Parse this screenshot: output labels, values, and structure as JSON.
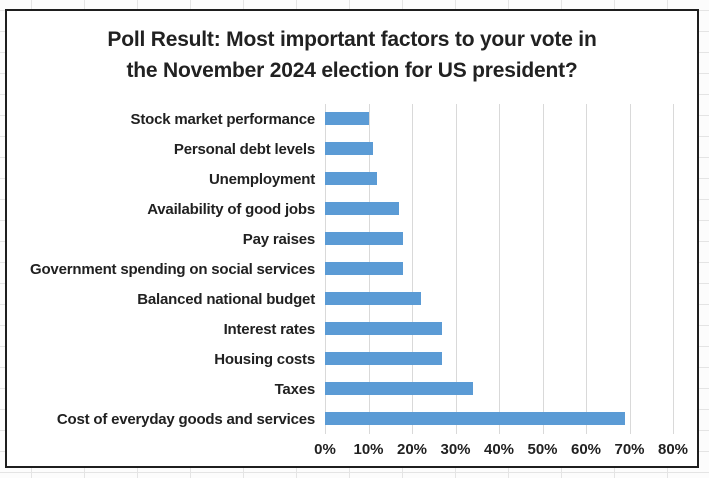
{
  "chart_data": {
    "type": "bar",
    "orientation": "horizontal",
    "title": "Poll Result: Most important factors to your vote in the November 2024 election for US president?",
    "title_lines": [
      "Poll Result: Most important factors to your vote in",
      "the November 2024 election for US president?"
    ],
    "categories": [
      "Stock market performance",
      "Personal debt levels",
      "Unemployment",
      "Availability of good jobs",
      "Pay raises",
      "Government spending on social services",
      "Balanced national budget",
      "Interest rates",
      "Housing costs",
      "Taxes",
      "Cost of everyday goods and services"
    ],
    "values": [
      10,
      11,
      12,
      17,
      18,
      18,
      22,
      27,
      27,
      34,
      69
    ],
    "unit": "%",
    "xlabel": "",
    "ylabel": "",
    "xlim": [
      0,
      80
    ],
    "x_tick_values": [
      0,
      10,
      20,
      30,
      40,
      50,
      60,
      70,
      80
    ],
    "x_tick_labels": [
      "0%",
      "10%",
      "20%",
      "30%",
      "40%",
      "50%",
      "60%",
      "70%",
      "80%"
    ],
    "grid": true,
    "legend_position": "none",
    "bar_color": "#5B9BD5",
    "gridline_color": "#D9D9D9",
    "text_color": "#212121"
  }
}
